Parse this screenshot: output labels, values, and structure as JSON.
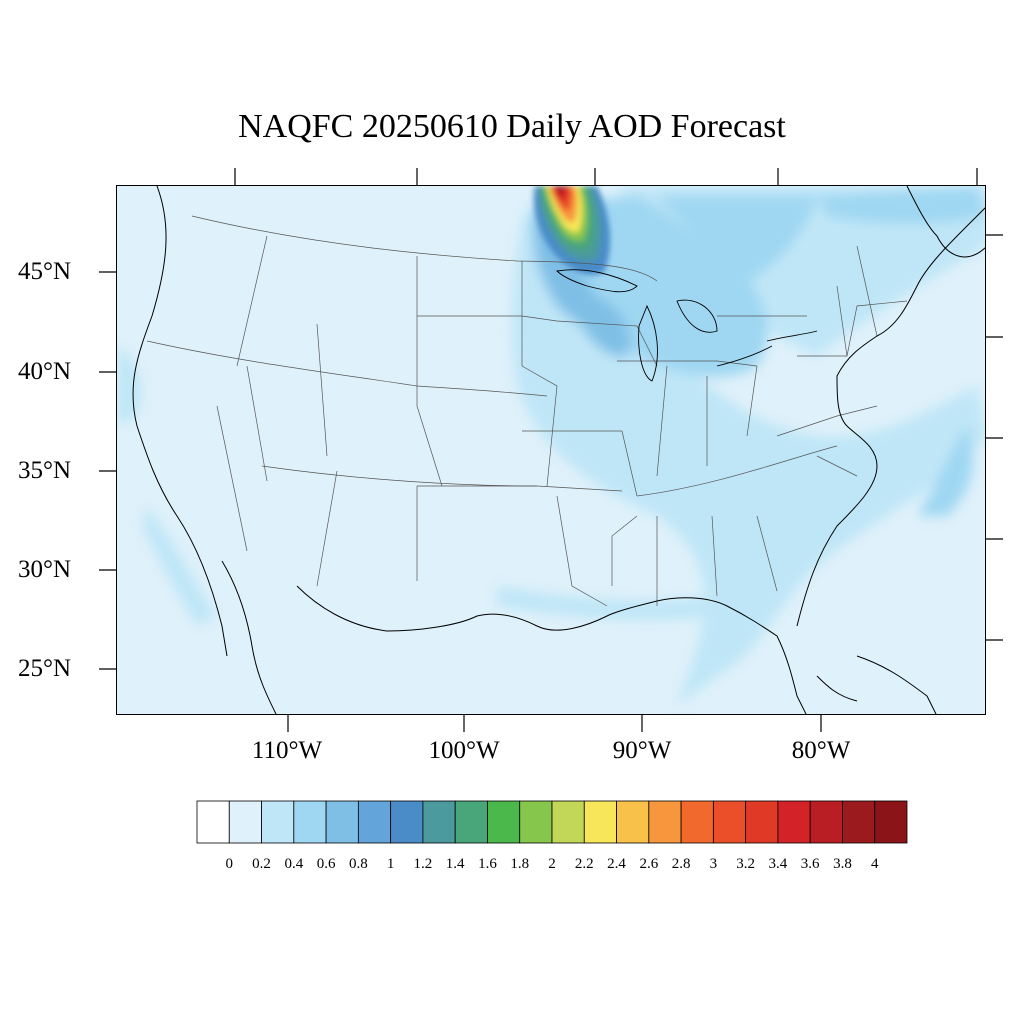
{
  "title": "NAQFC 20250610 Daily AOD Forecast",
  "map": {
    "region": "Contiguous United States",
    "variable": "AOD",
    "lat_labels": [
      "45°N",
      "40°N",
      "35°N",
      "30°N",
      "25°N"
    ],
    "lon_labels": [
      "110°W",
      "100°W",
      "90°W",
      "80°W"
    ],
    "colors": {
      "background_low": "#dff1fa",
      "boundary_lines": "#555555",
      "coastline": "#000000"
    }
  },
  "colorbar": {
    "labels": [
      "0",
      "0.2",
      "0.4",
      "0.6",
      "0.8",
      "1",
      "1.2",
      "1.4",
      "1.6",
      "1.8",
      "2",
      "2.2",
      "2.4",
      "2.6",
      "2.8",
      "3",
      "3.2",
      "3.4",
      "3.6",
      "3.8",
      "4"
    ],
    "colors": [
      "#ffffff",
      "#dff1fa",
      "#bfe6f7",
      "#9fd7f2",
      "#7fbfe6",
      "#63a4da",
      "#4a8cc8",
      "#4b9a9e",
      "#48a67a",
      "#4ab84a",
      "#86c64d",
      "#c2d658",
      "#f7e65a",
      "#f8c14a",
      "#f7973d",
      "#f2692e",
      "#ea4f2a",
      "#e03a27",
      "#d32228",
      "#b81e23",
      "#9a1a1d",
      "#8b1418"
    ]
  }
}
